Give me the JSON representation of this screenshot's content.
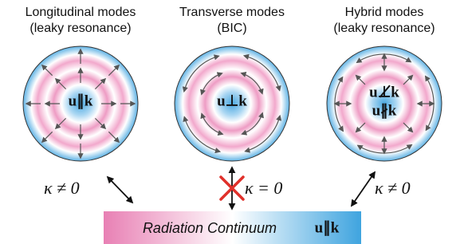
{
  "modes": [
    {
      "title": "Longitudinal modes",
      "subtitle": "(leaky resonance)",
      "labels": [
        "u∥k"
      ]
    },
    {
      "title": "Transverse modes",
      "subtitle": "(BIC)",
      "labels": [
        "u⊥k"
      ]
    },
    {
      "title": "Hybrid modes",
      "subtitle": "(leaky resonance)",
      "labels": [
        "u⊥̸k",
        "u∦k"
      ]
    }
  ],
  "couplings": [
    "κ ≠ 0",
    "κ = 0",
    "κ ≠ 0"
  ],
  "continuum": {
    "label": "Radiation Continuum",
    "condition": "u∥k"
  }
}
